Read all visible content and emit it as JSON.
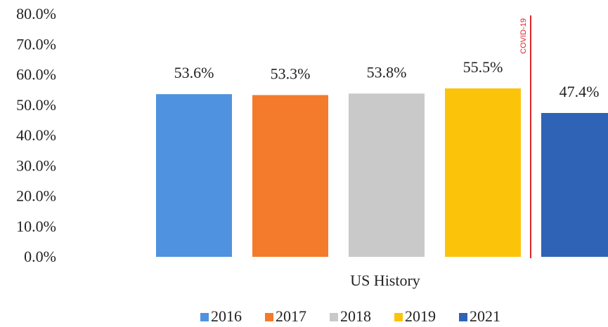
{
  "chart_data": {
    "type": "bar",
    "categories": [
      "US History"
    ],
    "series": [
      {
        "name": "2016",
        "color": "#4f93e0",
        "values": [
          53.6
        ],
        "value_labels": [
          "53.6%"
        ]
      },
      {
        "name": "2017",
        "color": "#f47b2b",
        "values": [
          53.3
        ],
        "value_labels": [
          "53.3%"
        ]
      },
      {
        "name": "2018",
        "color": "#c9c9c9",
        "values": [
          53.8
        ],
        "value_labels": [
          "53.8%"
        ]
      },
      {
        "name": "2019",
        "color": "#fcc30b",
        "values": [
          55.5
        ],
        "value_labels": [
          "55.5%"
        ]
      },
      {
        "name": "2021",
        "color": "#2f63b6",
        "values": [
          47.4
        ],
        "value_labels": [
          "47.4%"
        ]
      }
    ],
    "ylim": [
      0,
      80
    ],
    "yticks": [
      {
        "value": 0,
        "label": "0.0%"
      },
      {
        "value": 10,
        "label": "10.0%"
      },
      {
        "value": 20,
        "label": "20.0%"
      },
      {
        "value": 30,
        "label": "30.0%"
      },
      {
        "value": 40,
        "label": "40.0%"
      },
      {
        "value": 50,
        "label": "50.0%"
      },
      {
        "value": 60,
        "label": "60.0%"
      },
      {
        "value": 70,
        "label": "70.0%"
      },
      {
        "value": 80,
        "label": "80.0%"
      }
    ],
    "annotation": "COVID-19",
    "annotation_color": "#e0262a",
    "grid": false,
    "legend": "bottom"
  }
}
